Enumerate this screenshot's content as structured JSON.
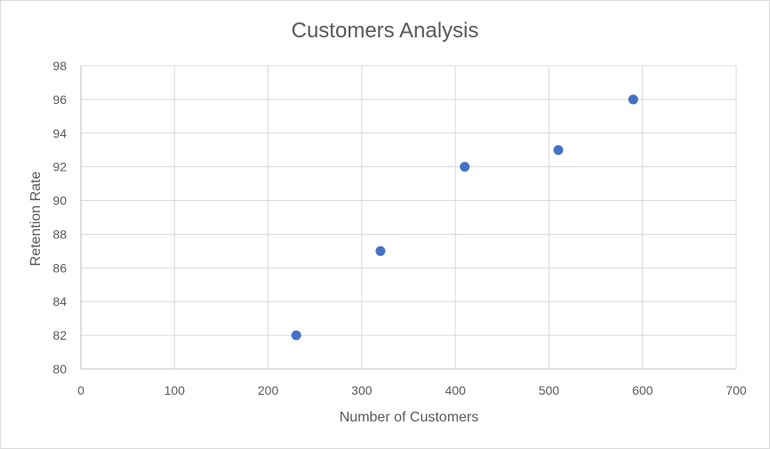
{
  "chart_data": {
    "type": "scatter",
    "title": "Customers Analysis",
    "xlabel": "Number of Customers",
    "ylabel": "Retention Rate",
    "xlim": [
      0,
      700
    ],
    "ylim": [
      80,
      98
    ],
    "xticks": [
      0,
      100,
      200,
      300,
      400,
      500,
      600,
      700
    ],
    "yticks": [
      80,
      82,
      84,
      86,
      88,
      90,
      92,
      94,
      96,
      98
    ],
    "grid": true,
    "legend": "none",
    "marker_color": "#4472c4",
    "points": [
      {
        "x": 230,
        "y": 82
      },
      {
        "x": 320,
        "y": 87
      },
      {
        "x": 410,
        "y": 92
      },
      {
        "x": 510,
        "y": 93
      },
      {
        "x": 590,
        "y": 96
      }
    ]
  }
}
